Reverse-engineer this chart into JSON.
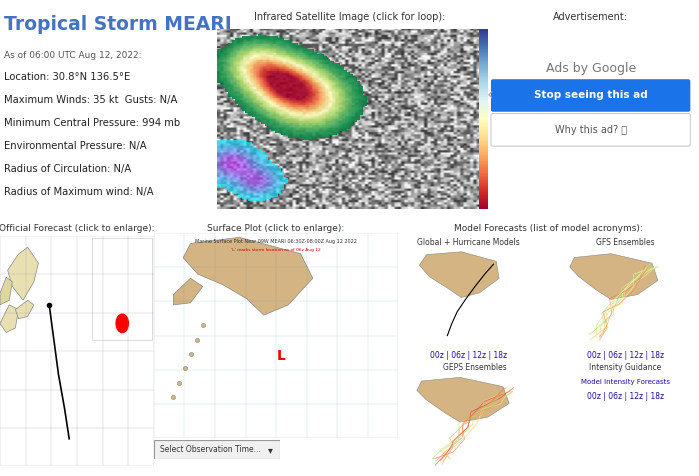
{
  "title": "Tropical Storm MEARI",
  "subtitle": "As of 06:00 UTC Aug 12, 2022:",
  "info_lines": [
    "Location: 30.8°N 136.5°E",
    "Maximum Winds: 35 kt  Gusts: N/A",
    "Minimum Central Pressure: 994 mb",
    "Environmental Pressure: N/A",
    "Radius of Circulation: N/A",
    "Radius of Maximum wind: N/A"
  ],
  "bg_color": "#ffffff",
  "title_color": "#4472c4",
  "subtitle_color": "#555555",
  "info_color": "#222222",
  "section_labels": {
    "ir_image": "Infrared Satellite Image (click for loop):",
    "advertisement": "Advertisement:",
    "official_forecast": "Official Forecast (click to enlarge):",
    "surface_plot": "Surface Plot (click to enlarge):",
    "model_forecasts_prefix": "Model Forecasts (",
    "model_forecasts_suffix": "):",
    "model_link_text": "list of model acronyms",
    "global_hurricane": "Global + Hurricane Models",
    "gfs_ensembles": "GFS Ensembles",
    "geps_ensembles": "GEPS Ensembles",
    "intensity_guidance": "Intensity Guidance"
  },
  "ad_text": "Ads by Google",
  "ad_button_text": "Stop seeing this ad",
  "ad_button_color": "#1a73e8",
  "ad_button_text_color": "#ffffff",
  "ad_why_text": "Why this ad? ⓘ",
  "section_label_color": "#333333",
  "link_color": "#1a0dab",
  "time_links": [
    "00z",
    "06z",
    "12z",
    "18z"
  ],
  "intensity_link": "Model Intensity Forecasts",
  "surface_plot_title": "Marine Surface Plot Near 09W MEARI 06:30Z-08:00Z Aug 12 2022",
  "surface_plot_subtitle": "'L' marks storm location as of 06z Aug 12",
  "select_button_text": "Select Observation Time...",
  "map_panel_colors": {
    "ocean": "#7ec8e3",
    "land": "#d4b483",
    "forecast_ocean": "#b0d4e8",
    "forecast_land": "#e8d5b0"
  }
}
